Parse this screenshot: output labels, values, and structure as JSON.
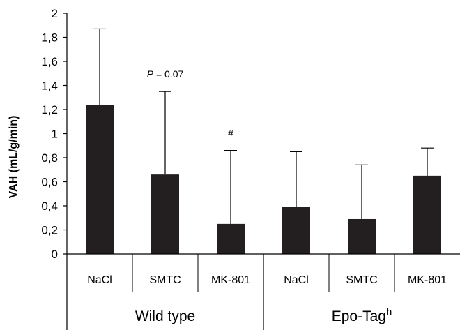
{
  "chart_data": {
    "type": "bar",
    "ylabel": "VAH (mL/g/min)",
    "ylim": [
      0,
      2
    ],
    "yticks": [
      "0",
      "0,2",
      "0,4",
      "0,6",
      "0,8",
      "1",
      "1,2",
      "1,4",
      "1,6",
      "1,8",
      "2"
    ],
    "categories": [
      "NaCl",
      "SMTC",
      "MK-801",
      "NaCl",
      "SMTC",
      "MK-801"
    ],
    "groups": [
      {
        "label": "Wild type",
        "sup": ""
      },
      {
        "label": "Epo-Tag",
        "sup": "h"
      }
    ],
    "series": [
      {
        "values": [
          1.24,
          0.66,
          0.25,
          0.39,
          0.29,
          0.65
        ],
        "error_upper": [
          1.87,
          1.35,
          0.86,
          0.85,
          0.74,
          0.88
        ],
        "color": "#231f20"
      }
    ],
    "annotations": [
      {
        "bar": 1,
        "p_italic": "P",
        "rest": " = 0.07"
      },
      {
        "bar": 2,
        "text": "#"
      }
    ]
  }
}
